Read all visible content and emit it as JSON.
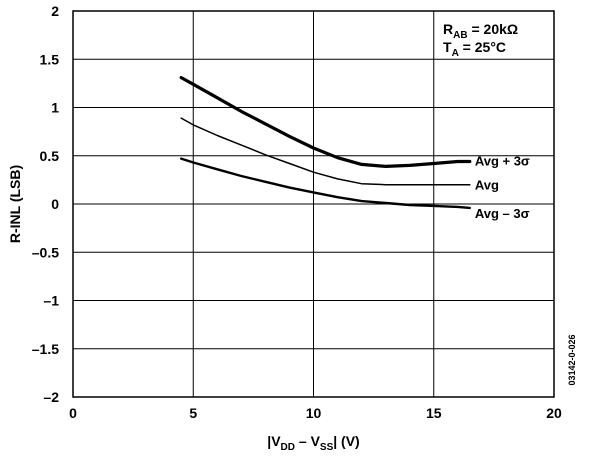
{
  "chart_data": {
    "type": "line",
    "title": "",
    "xlabel": {
      "pre": "|V",
      "sub1": "DD",
      "mid": " – V",
      "sub2": "SS",
      "post": "| (V)"
    },
    "ylabel": "R-INL (LSB)",
    "xlim": [
      0,
      20
    ],
    "ylim": [
      -2,
      2
    ],
    "xticks": [
      "0",
      "5",
      "10",
      "15",
      "20"
    ],
    "yticks": [
      "2",
      "1.5",
      "1",
      "0.5",
      "0",
      "–0.5",
      "–1",
      "–1.5",
      "–2"
    ],
    "grid": true,
    "annotations": {
      "rab": {
        "main": "R",
        "sub": "AB",
        "rest": " = 20kΩ"
      },
      "ta": {
        "main": "T",
        "sub": "A",
        "rest": " = 25°C"
      }
    },
    "figure_id": "03142-0-026",
    "series": [
      {
        "name": "Avg + 3σ",
        "x": [
          4.5,
          5,
          6,
          7,
          8,
          9,
          10,
          11,
          12,
          13,
          14,
          15,
          16,
          16.5
        ],
        "values": [
          1.31,
          1.24,
          1.1,
          0.96,
          0.83,
          0.7,
          0.58,
          0.48,
          0.41,
          0.39,
          0.4,
          0.42,
          0.44,
          0.44
        ]
      },
      {
        "name": "Avg",
        "x": [
          4.5,
          5,
          6,
          7,
          8,
          9,
          10,
          11,
          12,
          13,
          14,
          15,
          16,
          16.5
        ],
        "values": [
          0.89,
          0.82,
          0.71,
          0.61,
          0.51,
          0.42,
          0.33,
          0.26,
          0.21,
          0.2,
          0.2,
          0.2,
          0.2,
          0.2
        ]
      },
      {
        "name": "Avg – 3σ",
        "x": [
          4.5,
          5,
          6,
          7,
          8,
          9,
          10,
          11,
          12,
          13,
          14,
          15,
          16,
          16.5
        ],
        "values": [
          0.47,
          0.43,
          0.36,
          0.29,
          0.23,
          0.17,
          0.12,
          0.07,
          0.03,
          0.01,
          -0.01,
          -0.02,
          -0.03,
          -0.04
        ]
      }
    ]
  }
}
